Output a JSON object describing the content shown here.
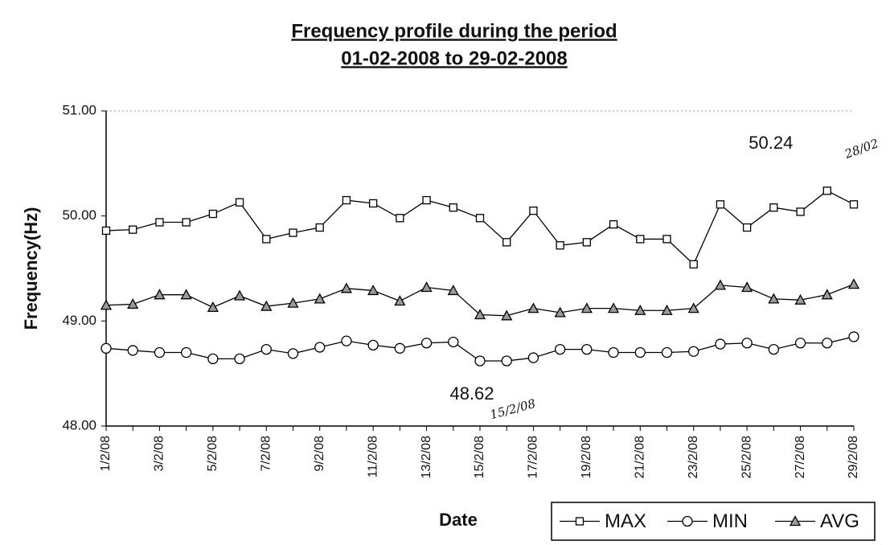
{
  "chart_data": {
    "type": "line",
    "title": "Frequency profile during the period",
    "subtitle": "01-02-2008 to 29-02-2008",
    "xlabel": "Date",
    "ylabel": "Frequency(Hz)",
    "categories": [
      "1/2/08",
      null,
      "3/2/08",
      null,
      "5/2/08",
      null,
      "7/2/08",
      null,
      "9/2/08",
      null,
      "11/2/08",
      null,
      "13/2/08",
      null,
      "15/2/08",
      null,
      "17/2/08",
      null,
      "19/2/08",
      null,
      "21/2/08",
      null,
      "23/2/08",
      null,
      "25/2/08",
      null,
      "27/2/08",
      null,
      "29/2/08"
    ],
    "series": [
      {
        "name": "MAX",
        "color": "#000000",
        "marker": "square",
        "marker_fill": "#ffffff",
        "values": [
          49.86,
          49.87,
          49.94,
          49.94,
          50.02,
          50.13,
          49.78,
          49.84,
          49.89,
          50.15,
          50.12,
          49.98,
          50.15,
          50.08,
          49.98,
          49.75,
          50.05,
          49.72,
          49.75,
          49.92,
          49.78,
          49.78,
          49.54,
          50.11,
          49.89,
          50.08,
          50.04,
          50.24,
          50.11
        ]
      },
      {
        "name": "MIN",
        "color": "#000000",
        "marker": "circle",
        "marker_fill": "#ffffff",
        "values": [
          48.74,
          48.72,
          48.7,
          48.7,
          48.64,
          48.64,
          48.73,
          48.69,
          48.75,
          48.81,
          48.77,
          48.74,
          48.79,
          48.8,
          48.62,
          48.62,
          48.65,
          48.73,
          48.73,
          48.7,
          48.7,
          48.7,
          48.71,
          48.78,
          48.79,
          48.73,
          48.79,
          48.79,
          48.85
        ]
      },
      {
        "name": "AVG",
        "color": "#000000",
        "marker": "triangle",
        "marker_fill": "#9a9a9a",
        "values": [
          49.15,
          49.16,
          49.25,
          49.25,
          49.13,
          49.24,
          49.14,
          49.17,
          49.21,
          49.31,
          49.29,
          49.19,
          49.32,
          49.29,
          49.06,
          49.05,
          49.12,
          49.08,
          49.12,
          49.12,
          49.1,
          49.1,
          49.12,
          49.34,
          49.32,
          49.21,
          49.2,
          49.25,
          49.35
        ]
      }
    ],
    "data_labels": [
      {
        "series": 0,
        "index": 27
      },
      {
        "series": 1,
        "index": 14
      }
    ],
    "annotations": [
      "28/02",
      "15/2/08"
    ],
    "ylim": [
      48,
      51
    ],
    "yticks": [
      {
        "value": 48,
        "label": "48.00"
      },
      {
        "value": 49,
        "label": "49.00"
      },
      {
        "value": 50,
        "label": "50.00"
      },
      {
        "value": 51,
        "label": "51.00"
      }
    ],
    "grid": false,
    "legend": "bottom-right"
  }
}
